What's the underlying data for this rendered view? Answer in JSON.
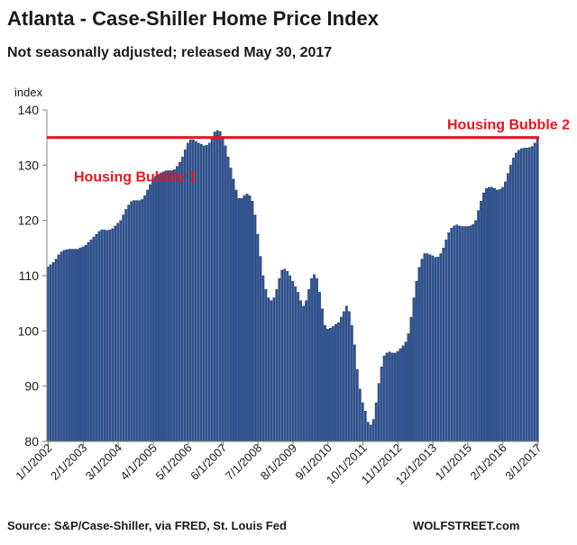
{
  "header": {
    "title": "Atlanta - Case-Shiller Home Price Index",
    "subtitle": "Not seasonally adjusted; released May 30, 2017"
  },
  "footer": {
    "source": "Source: S&P/Case-Shiller, via FRED,  St. Louis Fed",
    "brand": "WOLFSTREET.com"
  },
  "chart_data": {
    "type": "bar",
    "title": "Atlanta - Case-Shiller Home Price Index",
    "ylabel": "index",
    "xlabel": "",
    "ylim": [
      80,
      140
    ],
    "yticks": [
      80,
      90,
      100,
      110,
      120,
      130,
      140
    ],
    "grid": false,
    "bar_color": "#2f5597",
    "start": "1/1/2002",
    "frequency": "monthly",
    "xtick_labels": [
      "1/1/2002",
      "2/1/2003",
      "3/1/2004",
      "4/1/2005",
      "5/1/2006",
      "6/1/2007",
      "7/1/2008",
      "8/1/2009",
      "9/1/2010",
      "10/1/2011",
      "11/1/2012",
      "12/1/2013",
      "1/1/2015",
      "2/1/2016",
      "3/1/2017"
    ],
    "reference_line": {
      "value": 135,
      "color": "#e8141d"
    },
    "annotations": [
      {
        "text": "Housing Bubble 1",
        "value": 128
      },
      {
        "text": "Housing Bubble 2",
        "value": 137.5
      }
    ],
    "values": [
      111.6,
      112.0,
      112.4,
      113.0,
      113.8,
      114.3,
      114.6,
      114.7,
      114.8,
      114.8,
      114.8,
      114.8,
      115.0,
      115.2,
      115.5,
      116.0,
      116.5,
      117.0,
      117.5,
      118.0,
      118.3,
      118.3,
      118.2,
      118.3,
      118.5,
      119.0,
      119.5,
      120.0,
      121.0,
      122.0,
      122.8,
      123.4,
      123.6,
      123.6,
      123.6,
      123.8,
      124.5,
      125.5,
      126.5,
      127.5,
      128.0,
      128.3,
      128.6,
      128.8,
      129.0,
      129.0,
      129.0,
      129.2,
      129.8,
      130.5,
      131.5,
      132.8,
      134.0,
      134.6,
      134.6,
      134.3,
      134.0,
      133.8,
      133.5,
      133.6,
      134.0,
      135.0,
      136.0,
      136.3,
      136.1,
      135.2,
      133.5,
      131.5,
      129.5,
      127.5,
      125.5,
      124.0,
      124.0,
      124.5,
      124.8,
      124.5,
      123.5,
      121.0,
      117.5,
      113.5,
      110.0,
      107.5,
      106.0,
      105.5,
      106.0,
      107.5,
      109.5,
      111.0,
      111.2,
      110.8,
      110.0,
      109.0,
      108.0,
      107.0,
      105.5,
      104.5,
      105.5,
      107.5,
      109.5,
      110.2,
      109.5,
      107.0,
      104.0,
      101.0,
      100.3,
      100.5,
      100.8,
      101.2,
      101.5,
      102.5,
      103.5,
      104.5,
      103.5,
      101.0,
      97.5,
      93.0,
      89.5,
      87.0,
      85.5,
      83.5,
      83.0,
      84.0,
      87.0,
      90.5,
      93.5,
      95.5,
      96.0,
      96.2,
      96.0,
      96.0,
      96.3,
      96.8,
      97.3,
      98.0,
      99.5,
      102.5,
      106.0,
      109.0,
      111.5,
      113.0,
      114.0,
      114.0,
      113.8,
      113.6,
      113.3,
      113.4,
      114.0,
      115.0,
      116.5,
      117.8,
      118.6,
      119.0,
      119.2,
      119.0,
      118.9,
      118.9,
      118.9,
      119.0,
      119.3,
      120.0,
      121.8,
      123.5,
      125.0,
      125.8,
      126.0,
      126.0,
      125.8,
      125.5,
      125.6,
      126.0,
      127.0,
      128.5,
      130.0,
      131.3,
      132.2,
      132.7,
      133.0,
      133.1,
      133.1,
      133.2,
      133.4,
      134.0,
      135.0
    ]
  }
}
